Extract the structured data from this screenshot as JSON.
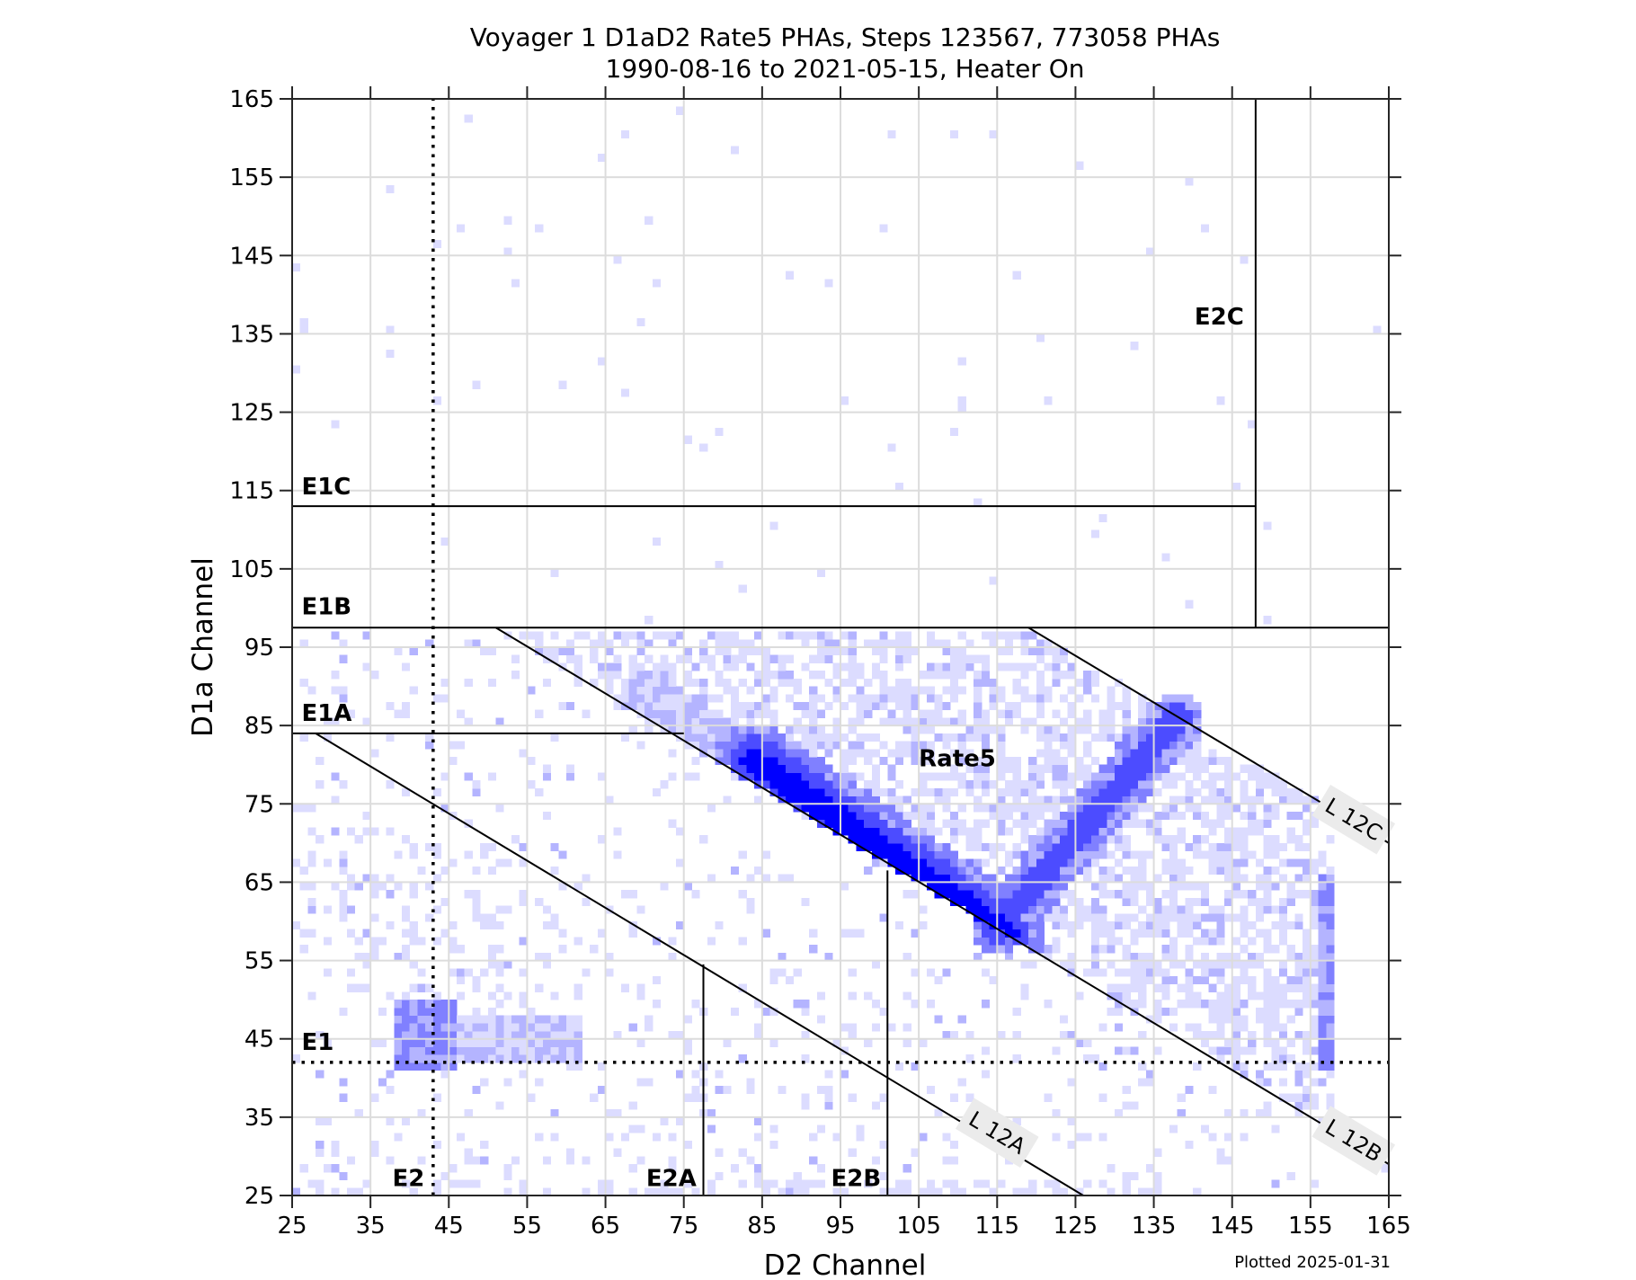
{
  "figure": {
    "title_line1": "Voyager 1 D1aD2 Rate5 PHAs, Steps 123567, 773058 PHAs",
    "title_line2": "1990-08-16 to 2021-05-15, Heater On",
    "xlabel": "D2 Channel",
    "ylabel": "D1a Channel",
    "footer": "Plotted 2025-01-31"
  },
  "chart_data": {
    "type": "heatmap",
    "title": "Voyager 1 D1aD2 Rate5 PHAs, Steps 123567, 773058 PHAs / 1990-08-16 to 2021-05-15, Heater On",
    "xlabel": "D2 Channel",
    "ylabel": "D1a Channel",
    "xlim": [
      25,
      165
    ],
    "ylim": [
      25,
      165
    ],
    "xticks": [
      25,
      35,
      45,
      55,
      65,
      75,
      85,
      95,
      105,
      115,
      125,
      135,
      145,
      155,
      165
    ],
    "yticks": [
      25,
      35,
      45,
      55,
      65,
      75,
      85,
      95,
      105,
      115,
      125,
      135,
      145,
      155,
      165
    ],
    "grid": true,
    "colormap": [
      "#ffffff",
      "#dcdcff",
      "#b4b4ff",
      "#8080ff",
      "#4c4cff",
      "#0000ff"
    ],
    "thresholds": [
      {
        "name": "E1",
        "type": "hline",
        "y": 42,
        "style": "dotted",
        "x_range": [
          25,
          165
        ]
      },
      {
        "name": "E2",
        "type": "vline",
        "x": 43,
        "style": "dotted",
        "y_range": [
          25,
          165
        ]
      },
      {
        "name": "E1A",
        "type": "hline",
        "y": 84,
        "style": "solid",
        "x_range": [
          25,
          75
        ]
      },
      {
        "name": "E1B",
        "type": "hline",
        "y": 97.5,
        "style": "solid",
        "x_range": [
          25,
          165
        ]
      },
      {
        "name": "E1C",
        "type": "hline",
        "y": 113,
        "style": "solid",
        "x_range": [
          25,
          148
        ]
      },
      {
        "name": "E2A",
        "type": "vline",
        "x": 77.5,
        "style": "solid",
        "y_range": [
          25,
          54.5
        ]
      },
      {
        "name": "E2B",
        "type": "vline",
        "x": 101,
        "style": "solid",
        "y_range": [
          25,
          66.5
        ]
      },
      {
        "name": "E2C",
        "type": "vline",
        "x": 148,
        "style": "solid",
        "y_range": [
          97.5,
          165
        ]
      },
      {
        "name": "L 12A",
        "type": "line",
        "points": [
          [
            28,
            84
          ],
          [
            126,
            25
          ]
        ]
      },
      {
        "name": "L 12B",
        "type": "line",
        "points": [
          [
            51,
            97.5
          ],
          [
            165,
            29
          ]
        ]
      },
      {
        "name": "L 12C",
        "type": "line",
        "points": [
          [
            119,
            97.5
          ],
          [
            165,
            70
          ]
        ]
      }
    ],
    "region_labels": [
      {
        "text": "E1C",
        "x": 26.2,
        "y": 114.5
      },
      {
        "text": "E1B",
        "x": 26.2,
        "y": 99.2
      },
      {
        "text": "E1A",
        "x": 26.2,
        "y": 85.6
      },
      {
        "text": "E1",
        "x": 26.2,
        "y": 43.6
      },
      {
        "text": "E2",
        "x": 37.8,
        "y": 26.2
      },
      {
        "text": "E2A",
        "x": 70.2,
        "y": 26.2
      },
      {
        "text": "E2B",
        "x": 93.8,
        "y": 26.2
      },
      {
        "text": "E2C",
        "x": 140.2,
        "y": 136.2
      },
      {
        "text": "Rate5",
        "x": 105,
        "y": 79.8
      }
    ],
    "line_labels": [
      {
        "text": "L 12A",
        "x": 115,
        "y": 33,
        "angle": 31
      },
      {
        "text": "L 12B",
        "x": 160.5,
        "y": 32,
        "angle": 31
      },
      {
        "text": "L 12C",
        "x": 160.5,
        "y": 73,
        "angle": 31
      }
    ],
    "density_features": [
      {
        "name": "main band (dense)",
        "from": [
          84,
          82
        ],
        "to": [
          116,
          58
        ],
        "peak_level": 5
      },
      {
        "name": "secondary branch",
        "from": [
          115,
          60
        ],
        "to": [
          138,
          86
        ],
        "peak_level": 3
      },
      {
        "name": "diffuse wedge",
        "bounds": "between L 12B and L 12C, below E1B",
        "peak_level": 1
      },
      {
        "name": "E1 cluster",
        "center": [
          42,
          45
        ],
        "extent": [
          [
            38,
            41
          ],
          [
            62,
            50
          ]
        ],
        "peak_level": 3
      },
      {
        "name": "right edge column",
        "x": 157,
        "y_range": [
          42,
          66
        ],
        "peak_level": 3
      },
      {
        "name": "low E2 strip",
        "y": 25.5,
        "x_range": [
          28,
          135
        ],
        "peak_level": 1
      }
    ]
  }
}
